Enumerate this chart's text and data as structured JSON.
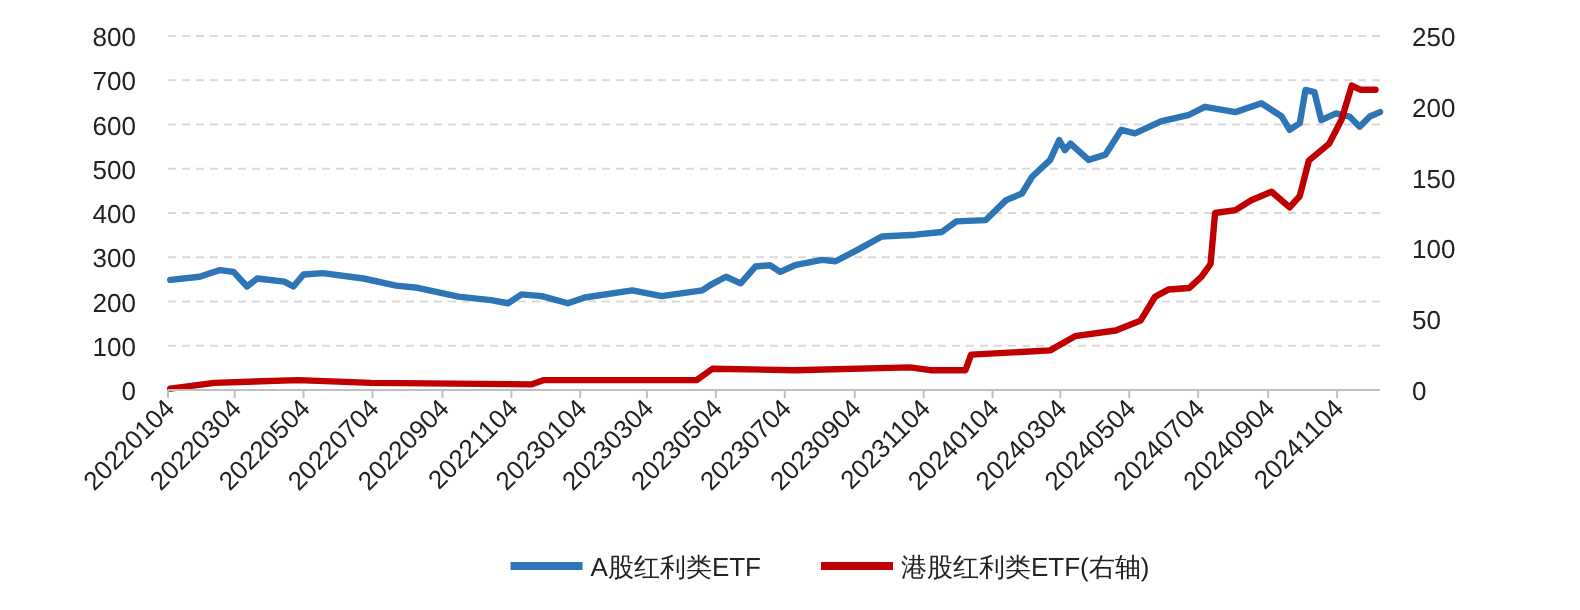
{
  "chart_data": {
    "type": "line",
    "grid": "y",
    "legend": "bottom",
    "xlim": [
      "2022-01-04",
      "2024-12-12"
    ],
    "xticks": [
      {
        "value": "2022-01-04",
        "label": "20220104"
      },
      {
        "value": "2022-03-04",
        "label": "20220304"
      },
      {
        "value": "2022-05-04",
        "label": "20220504"
      },
      {
        "value": "2022-07-04",
        "label": "20220704"
      },
      {
        "value": "2022-09-04",
        "label": "20220904"
      },
      {
        "value": "2022-11-04",
        "label": "20221104"
      },
      {
        "value": "2023-01-04",
        "label": "20230104"
      },
      {
        "value": "2023-03-04",
        "label": "20230304"
      },
      {
        "value": "2023-05-04",
        "label": "20230504"
      },
      {
        "value": "2023-07-04",
        "label": "20230704"
      },
      {
        "value": "2023-09-04",
        "label": "20230904"
      },
      {
        "value": "2023-11-04",
        "label": "20231104"
      },
      {
        "value": "2024-01-04",
        "label": "20240104"
      },
      {
        "value": "2024-03-04",
        "label": "20240304"
      },
      {
        "value": "2024-05-04",
        "label": "20240504"
      },
      {
        "value": "2024-07-04",
        "label": "20240704"
      },
      {
        "value": "2024-09-04",
        "label": "20240904"
      },
      {
        "value": "2024-11-04",
        "label": "20241104"
      }
    ],
    "ylim": [
      0,
      800
    ],
    "yticks": [
      0,
      100,
      200,
      300,
      400,
      500,
      600,
      700,
      800
    ],
    "y2lim": [
      0,
      250
    ],
    "y2ticks": [
      0,
      50,
      100,
      150,
      200,
      250
    ],
    "series": [
      {
        "name": "A股红利类ETF",
        "color": "#2e75b6",
        "axis": "y",
        "x": [
          "2022-01-06",
          "2022-02-01",
          "2022-02-19",
          "2022-03-03",
          "2022-03-15",
          "2022-03-24",
          "2022-04-17",
          "2022-04-25",
          "2022-05-04",
          "2022-05-21",
          "2022-06-26",
          "2022-07-25",
          "2022-08-13",
          "2022-09-18",
          "2022-10-17",
          "2022-11-01",
          "2022-11-13",
          "2022-12-01",
          "2022-12-24",
          "2023-01-08",
          "2023-02-19",
          "2023-03-17",
          "2023-04-22",
          "2023-05-01",
          "2023-05-13",
          "2023-05-26",
          "2023-06-08",
          "2023-06-21",
          "2023-06-30",
          "2023-07-13",
          "2023-08-06",
          "2023-08-18",
          "2023-09-06",
          "2023-09-28",
          "2023-10-28",
          "2023-11-20",
          "2023-12-03",
          "2023-12-29",
          "2024-01-16",
          "2024-01-30",
          "2024-02-08",
          "2024-02-24",
          "2024-03-03",
          "2024-03-08",
          "2024-03-13",
          "2024-03-29",
          "2024-04-13",
          "2024-04-27",
          "2024-05-09",
          "2024-06-01",
          "2024-06-26",
          "2024-07-10",
          "2024-08-06",
          "2024-08-29",
          "2024-09-16",
          "2024-09-23",
          "2024-10-02",
          "2024-10-07",
          "2024-10-15",
          "2024-10-21",
          "2024-11-03",
          "2024-11-15",
          "2024-11-24",
          "2024-12-03",
          "2024-12-12"
        ],
        "values": [
          249,
          256,
          271,
          267,
          234,
          252,
          245,
          234,
          261,
          264,
          252,
          236,
          231,
          211,
          203,
          196,
          216,
          212,
          196,
          209,
          225,
          212,
          225,
          240,
          256,
          241,
          279,
          282,
          267,
          282,
          294,
          291,
          316,
          347,
          351,
          357,
          381,
          384,
          429,
          444,
          482,
          520,
          565,
          542,
          557,
          520,
          532,
          588,
          580,
          607,
          622,
          640,
          628,
          648,
          618,
          588,
          603,
          678,
          673,
          610,
          625,
          618,
          595,
          618,
          628
        ]
      },
      {
        "name": "港股红利类ETF(右轴)",
        "color": "#c00000",
        "axis": "y2",
        "x": [
          "2022-01-06",
          "2022-02-14",
          "2022-04-29",
          "2022-07-03",
          "2022-11-22",
          "2022-12-03",
          "2023-04-17",
          "2023-05-01",
          "2023-07-13",
          "2023-10-23",
          "2023-11-10",
          "2023-12-11",
          "2023-12-16",
          "2024-02-24",
          "2024-03-17",
          "2024-04-22",
          "2024-05-14",
          "2024-05-27",
          "2024-06-08",
          "2024-06-26",
          "2024-07-07",
          "2024-07-15",
          "2024-07-19",
          "2024-08-06",
          "2024-08-20",
          "2024-09-07",
          "2024-09-23",
          "2024-10-02",
          "2024-10-10",
          "2024-10-28",
          "2024-11-08",
          "2024-11-17",
          "2024-11-25",
          "2024-12-08"
        ],
        "values": [
          1,
          5,
          7,
          5,
          4,
          7,
          7,
          15,
          14,
          16,
          14,
          14,
          25,
          28,
          38,
          42,
          49,
          66,
          71,
          72,
          80,
          89,
          125,
          127,
          134,
          140,
          129,
          137,
          162,
          174,
          191,
          215,
          212,
          212
        ]
      }
    ]
  }
}
